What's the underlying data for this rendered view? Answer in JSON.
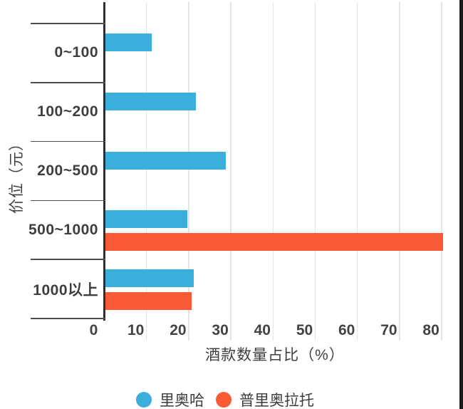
{
  "chart_data": {
    "type": "bar",
    "orientation": "horizontal",
    "categories": [
      "0~100",
      "100~200",
      "200~500",
      "500~1000",
      "1000以上"
    ],
    "series": [
      {
        "name": "里奥哈",
        "color": "#3baedc",
        "values": [
          11,
          21.5,
          28.5,
          19.5,
          21
        ]
      },
      {
        "name": "普里奥拉托",
        "color": "#fa5a35",
        "values": [
          0,
          0,
          0,
          80,
          20.5
        ]
      }
    ],
    "xlabel": "酒款数量占比（%）",
    "ylabel": "价位（元）",
    "xlim": [
      0,
      85
    ],
    "xticks": [
      0,
      10,
      20,
      30,
      40,
      50,
      60,
      70,
      80
    ],
    "grid": true,
    "legend_position": "bottom",
    "colors": {
      "rioja_blue": "#3baedc",
      "priorat_orange": "#fa5a35",
      "axis_line": "#2f2f2f",
      "separator": "#4d4d4d",
      "gridline": "#e4e4e6",
      "text": "#3e3e3e",
      "background": "#ffffff",
      "frame_border": "#1b1b1b"
    }
  }
}
